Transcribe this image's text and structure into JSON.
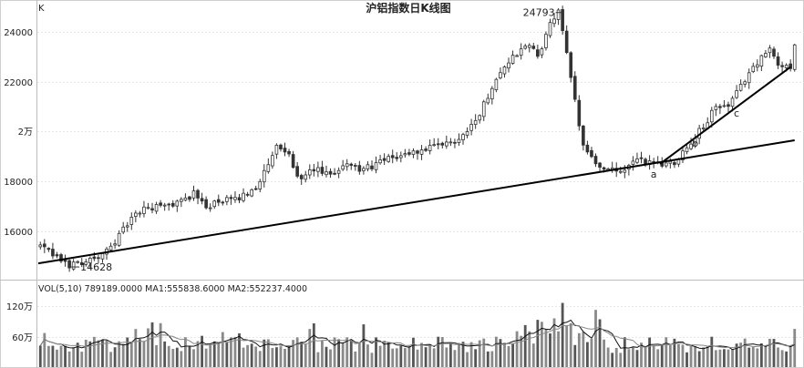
{
  "chart_data": [
    {
      "type": "candlestick",
      "title": "沪铝指数日K线图",
      "y_unit_label": "K",
      "yticks": [
        {
          "value": 16000,
          "label": "16000"
        },
        {
          "value": 18000,
          "label": "18000"
        },
        {
          "value": 20000,
          "label": "2万"
        },
        {
          "value": 22000,
          "label": "22000"
        },
        {
          "value": 24000,
          "label": "24000"
        }
      ],
      "ylim": [
        14300,
        25150
      ],
      "n_bars": 170,
      "anchors": [
        [
          0,
          15400
        ],
        [
          4,
          14900
        ],
        [
          7,
          14628
        ],
        [
          12,
          14850
        ],
        [
          15,
          15000
        ],
        [
          18,
          15600
        ],
        [
          22,
          16500
        ],
        [
          25,
          16900
        ],
        [
          30,
          17000
        ],
        [
          34,
          17200
        ],
        [
          37,
          17500
        ],
        [
          40,
          17000
        ],
        [
          44,
          17200
        ],
        [
          48,
          17300
        ],
        [
          52,
          17800
        ],
        [
          55,
          18600
        ],
        [
          57,
          19400
        ],
        [
          60,
          19000
        ],
        [
          63,
          18000
        ],
        [
          66,
          18500
        ],
        [
          70,
          18200
        ],
        [
          74,
          18800
        ],
        [
          77,
          18400
        ],
        [
          81,
          18700
        ],
        [
          86,
          19000
        ],
        [
          91,
          19200
        ],
        [
          96,
          19400
        ],
        [
          101,
          19700
        ],
        [
          106,
          20700
        ],
        [
          110,
          22200
        ],
        [
          114,
          23000
        ],
        [
          118,
          23500
        ],
        [
          120,
          23000
        ],
        [
          123,
          24300
        ],
        [
          125,
          24793
        ],
        [
          127,
          23300
        ],
        [
          129,
          21200
        ],
        [
          131,
          19500
        ],
        [
          134,
          18700
        ],
        [
          137,
          18500
        ],
        [
          140,
          18300
        ],
        [
          143,
          18800
        ],
        [
          147,
          18800
        ],
        [
          150,
          18700
        ],
        [
          153,
          18800
        ],
        [
          156,
          19400
        ],
        [
          160,
          20200
        ],
        [
          163,
          21000
        ],
        [
          166,
          21000
        ],
        [
          169,
          21800
        ],
        [
          171,
          22400
        ],
        [
          173,
          22800
        ],
        [
          176,
          23300
        ],
        [
          178,
          22700
        ],
        [
          181,
          22600
        ],
        [
          182,
          23600
        ]
      ],
      "trendlines": [
        {
          "name": "long-term-support",
          "points": [
            [
              0,
              14700
            ],
            [
              182,
              19650
            ]
          ]
        },
        {
          "name": "a-b-c-trendline",
          "points": [
            [
              150,
              18700
            ],
            [
              181,
              22600
            ]
          ]
        }
      ],
      "annotations": [
        {
          "text": "24793",
          "x": 125,
          "y": 24793
        },
        {
          "text": "14628",
          "x": 7,
          "y": 14628
        },
        {
          "text": "a",
          "x": 148,
          "y": 18150
        },
        {
          "text": "b",
          "x": 158,
          "y": 19400
        },
        {
          "text": "c",
          "x": 168,
          "y": 20600
        }
      ]
    },
    {
      "type": "bar",
      "title": "VOL(5,10)",
      "legend_text": "VOL(5,10)  789189.0000  MA1:555838.6000  MA2:552237.4000",
      "yticks": [
        {
          "value": 600000,
          "label": "60万"
        },
        {
          "value": 1200000,
          "label": "120万"
        }
      ],
      "ylim": [
        0,
        1400000
      ],
      "series": [
        {
          "label": "VOL(5,10)",
          "value": 789189.0
        },
        {
          "label": "MA1",
          "value": 555838.6
        },
        {
          "label": "MA2",
          "value": 552237.4
        }
      ]
    }
  ]
}
